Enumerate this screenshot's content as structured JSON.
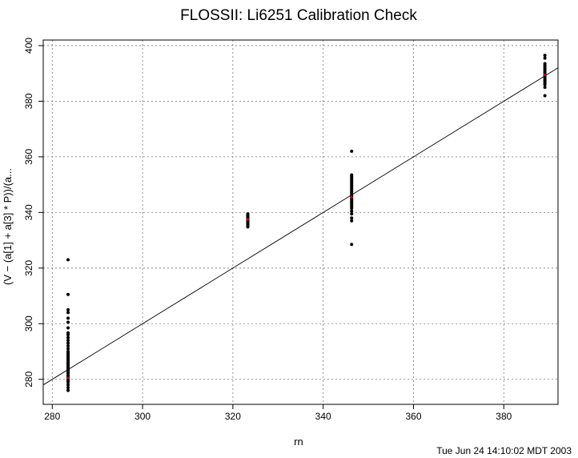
{
  "chart_data": {
    "type": "scatter",
    "title": "FLOSSII: Li6251 Calibration Check",
    "xlabel": "rn",
    "ylabel": "(V − (a[1] + a[3] * P))/(a...",
    "xlim": [
      278,
      392
    ],
    "ylim": [
      271,
      402
    ],
    "xticks": [
      280,
      300,
      320,
      340,
      360,
      380
    ],
    "yticks": [
      280,
      300,
      320,
      340,
      360,
      380,
      400
    ],
    "grid": true,
    "grid_style": "dotted",
    "reference_line": {
      "label": "",
      "slope": 1,
      "intercept": 0
    },
    "clusters": [
      {
        "x": 283.5,
        "y": [
          276,
          277,
          278,
          279,
          279.5,
          280,
          280.5,
          281,
          281.5,
          282,
          282.5,
          283,
          283.5,
          284,
          284.5,
          285,
          285.5,
          286,
          286.5,
          287,
          287.5,
          288,
          288.5,
          289,
          289.5,
          290,
          291,
          292,
          293,
          294,
          295,
          296,
          296.7,
          298.5,
          300.5,
          302,
          304,
          305,
          310.5,
          323
        ]
      },
      {
        "x": 323.3,
        "y": [
          334.8,
          335.3,
          335.8,
          336.2,
          336.6,
          337,
          337.4,
          337.8,
          338.2,
          338.6,
          339,
          339.5
        ]
      },
      {
        "x": 346.3,
        "y": [
          328.5,
          337,
          338,
          339.5,
          340.5,
          341.5,
          342,
          342.5,
          343,
          343.5,
          344,
          344.5,
          345,
          345.5,
          346,
          346.5,
          347,
          347.5,
          348,
          348.5,
          349,
          349.5,
          350,
          350.5,
          351,
          351.5,
          352,
          352.5,
          353,
          353.5,
          362
        ]
      },
      {
        "x": 389.1,
        "y": [
          382,
          385,
          386,
          386.5,
          387,
          387.5,
          388,
          388.5,
          389,
          389.5,
          390,
          390.5,
          391,
          391.5,
          392,
          392.5,
          393,
          393.5,
          395.5,
          396.5
        ]
      }
    ],
    "point_color": "#000000",
    "highlight_points": [
      {
        "x": 283.5,
        "y": 280.5,
        "color": "#cc0000"
      },
      {
        "x": 323.3,
        "y": 337.5,
        "color": "#cc0000"
      },
      {
        "x": 346.3,
        "y": 345.5,
        "color": "#cc0000"
      },
      {
        "x": 389.1,
        "y": 389.5,
        "color": "#cc0000"
      }
    ]
  },
  "footer": {
    "timestamp": "Tue Jun 24 14:10:02 MDT 2003"
  }
}
